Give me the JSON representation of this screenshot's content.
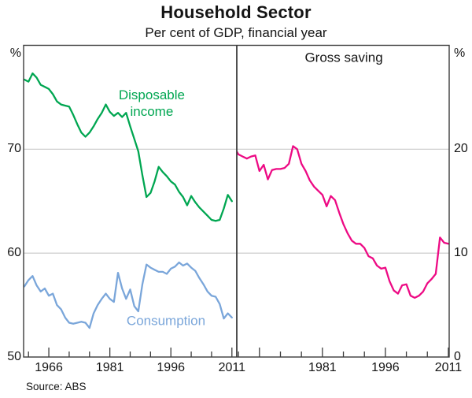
{
  "chart_data": {
    "type": "line",
    "title": "Household Sector",
    "subtitle": "Per cent of GDP, financial year",
    "source": "Source: ABS",
    "frequency": "annual (financial years)",
    "colors": {
      "disposable_income": "#00a651",
      "consumption": "#7aa6da",
      "gross_saving": "#ed0a84",
      "gridline": "#c9c9c9",
      "frame": "#3c3c3c",
      "text": "#141414"
    },
    "panels": [
      {
        "id": "left",
        "ylabel": "%",
        "ylim": [
          50,
          80
        ],
        "yticks": [
          50,
          60,
          70
        ],
        "gridlines": [
          60,
          70
        ],
        "xlim": [
          1959.8,
          2012.2
        ],
        "xticks_major": [
          1966,
          1981,
          1996,
          2011
        ],
        "xticks_minor": [
          1961,
          1971,
          1976,
          1986,
          1991,
          2001,
          2006
        ],
        "xticks_labels": [
          1966,
          1981,
          1996,
          2011
        ],
        "series": [
          {
            "id": "disposable-income",
            "name": "Disposable income",
            "color": "#00a651",
            "start_year": 1960,
            "values": [
              76.7,
              76.5,
              77.3,
              76.9,
              76.2,
              76.0,
              75.8,
              75.3,
              74.6,
              74.3,
              74.2,
              74.1,
              73.3,
              72.4,
              71.6,
              71.2,
              71.6,
              72.2,
              72.9,
              73.5,
              74.3,
              73.6,
              73.2,
              73.5,
              73.1,
              73.5,
              72.2,
              71.0,
              69.8,
              67.5,
              65.4,
              65.8,
              66.9,
              68.3,
              67.8,
              67.4,
              66.9,
              66.6,
              65.9,
              65.4,
              64.6,
              65.5,
              64.9,
              64.4,
              64.0,
              63.6,
              63.2,
              63.1,
              63.2,
              64.3,
              65.6,
              65.0
            ]
          },
          {
            "id": "consumption",
            "name": "Consumption",
            "color": "#7aa6da",
            "start_year": 1960,
            "values": [
              56.8,
              57.4,
              57.8,
              56.9,
              56.3,
              56.6,
              55.9,
              56.1,
              55.0,
              54.6,
              53.8,
              53.3,
              53.2,
              53.3,
              53.4,
              53.3,
              52.8,
              54.2,
              55.0,
              55.6,
              56.1,
              55.6,
              55.3,
              58.1,
              56.6,
              55.6,
              56.5,
              54.9,
              54.4,
              57.0,
              58.9,
              58.6,
              58.4,
              58.2,
              58.2,
              58.0,
              58.5,
              58.7,
              59.1,
              58.8,
              59.0,
              58.6,
              58.3,
              57.6,
              57.0,
              56.3,
              55.9,
              55.8,
              55.1,
              53.7,
              54.2,
              53.8
            ]
          }
        ],
        "annotations": [
          {
            "id": "disposable-income-label",
            "text": "Disposable\nincome",
            "year": 1991.3,
            "value": 74.4,
            "color": "#00a651"
          },
          {
            "id": "consumption-label",
            "text": "Consumption",
            "year": 1994.8,
            "value": 53.5,
            "color": "#7aa6da"
          }
        ]
      },
      {
        "id": "right",
        "ylabel": "%",
        "ylim": [
          0,
          30
        ],
        "yticks": [
          0,
          10,
          20
        ],
        "gridlines": [
          10,
          20
        ],
        "xlim": [
          1960.6,
          2011.2
        ],
        "xticks_major": [
          1966,
          1981,
          1996,
          2011
        ],
        "xticks_minor": [
          1961,
          1971,
          1976,
          1986,
          1991,
          2001,
          2006
        ],
        "xticks_labels": [
          1981,
          1996,
          2011
        ],
        "series": [
          {
            "id": "gross-saving",
            "name": "Gross saving",
            "color": "#ed0a84",
            "start_year": 1960,
            "values": [
              20.2,
              19.5,
              19.3,
              19.1,
              19.3,
              19.4,
              17.9,
              18.5,
              17.1,
              18.0,
              18.1,
              18.1,
              18.2,
              18.6,
              20.3,
              20.0,
              18.6,
              17.9,
              17.0,
              16.4,
              16.0,
              15.6,
              14.5,
              15.5,
              15.1,
              13.9,
              12.8,
              11.9,
              11.2,
              10.9,
              10.9,
              10.5,
              9.7,
              9.5,
              8.8,
              8.5,
              8.6,
              7.3,
              6.4,
              6.1,
              6.9,
              7.0,
              5.9,
              5.7,
              5.9,
              6.3,
              7.1,
              7.5,
              8.0,
              11.5,
              11.0,
              10.9
            ]
          }
        ],
        "annotations": [
          {
            "id": "gross-saving-label",
            "text": "Gross saving",
            "year": 1986.1,
            "value": 28.8,
            "color": "#141414"
          }
        ]
      }
    ]
  }
}
